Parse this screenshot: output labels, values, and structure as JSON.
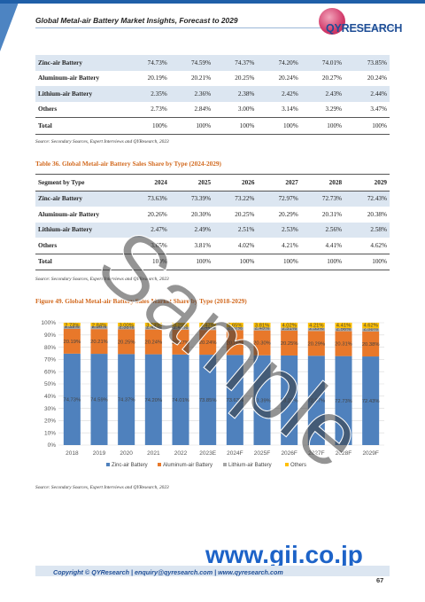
{
  "header": {
    "title": "Global Metal-air Battery Market Insights, Forecast to 2029",
    "logo_text": "QYRESEARCH"
  },
  "table1": {
    "rows": [
      {
        "label": "Zinc-air Battery",
        "values": [
          "74.73%",
          "74.59%",
          "74.37%",
          "74.20%",
          "74.01%",
          "73.85%"
        ]
      },
      {
        "label": "Aluminum-air Battery",
        "values": [
          "20.19%",
          "20.21%",
          "20.25%",
          "20.24%",
          "20.27%",
          "20.24%"
        ]
      },
      {
        "label": "Lithium-air Battery",
        "values": [
          "2.35%",
          "2.36%",
          "2.38%",
          "2.42%",
          "2.43%",
          "2.44%"
        ]
      },
      {
        "label": "Others",
        "values": [
          "2.73%",
          "2.84%",
          "3.00%",
          "3.14%",
          "3.29%",
          "3.47%"
        ]
      },
      {
        "label": "Total",
        "values": [
          "100%",
          "100%",
          "100%",
          "100%",
          "100%",
          "100%"
        ]
      }
    ]
  },
  "source1": "Source: Secondary Sources, Expert Interviews and QYResearch, 2023",
  "table2": {
    "caption": "Table 36.   Global Metal-air Battery Sales Share by Type (2024-2029)",
    "header": [
      "Segment by Type",
      "2024",
      "2025",
      "2026",
      "2027",
      "2028",
      "2029"
    ],
    "rows": [
      {
        "label": "Zinc-air Battery",
        "values": [
          "73.63%",
          "73.39%",
          "73.22%",
          "72.97%",
          "72.73%",
          "72.43%"
        ]
      },
      {
        "label": "Aluminum-air Battery",
        "values": [
          "20.26%",
          "20.30%",
          "20.25%",
          "20.29%",
          "20.31%",
          "20.38%"
        ]
      },
      {
        "label": "Lithium-air Battery",
        "values": [
          "2.47%",
          "2.49%",
          "2.51%",
          "2.53%",
          "2.56%",
          "2.58%"
        ]
      },
      {
        "label": "Others",
        "values": [
          "3.65%",
          "3.81%",
          "4.02%",
          "4.21%",
          "4.41%",
          "4.62%"
        ]
      },
      {
        "label": "Total",
        "values": [
          "100%",
          "100%",
          "100%",
          "100%",
          "100%",
          "100%"
        ]
      }
    ]
  },
  "source2": "Source: Secondary Sources, Expert Interviews and QYResearch, 2023",
  "figure_caption": "Figure 49.   Global Metal-air Battery Sales Market Share by Type (2018-2029)",
  "source3": "Source: Secondary Sources, Expert Interviews and QYResearch, 2023",
  "chart_data": {
    "type": "bar",
    "stacked": true,
    "title": "",
    "xlabel": "",
    "ylabel": "",
    "ylim": [
      0,
      100
    ],
    "yticks": [
      "0%",
      "10%",
      "20%",
      "30%",
      "40%",
      "50%",
      "60%",
      "70%",
      "80%",
      "90%",
      "100%"
    ],
    "categories": [
      "2018",
      "2019",
      "2020",
      "2021",
      "2022",
      "2023E",
      "2024F",
      "2025F",
      "2026F",
      "2027F",
      "2028F",
      "2029F"
    ],
    "series": [
      {
        "name": "Zinc-air Battery",
        "color": "#4f81bd",
        "values": [
          74.73,
          74.59,
          74.37,
          74.2,
          74.01,
          73.85,
          73.63,
          73.39,
          73.22,
          72.97,
          72.73,
          72.43
        ],
        "labels": [
          "74.73%",
          "74.59%",
          "74.37%",
          "74.20%",
          "74.01%",
          "73.85%",
          "73.63%",
          "73.39%",
          "73.22%",
          "72.97%",
          "72.73%",
          "72.43%"
        ]
      },
      {
        "name": "Aluminum-air Battery",
        "color": "#e8782a",
        "values": [
          20.19,
          20.21,
          20.25,
          20.24,
          20.27,
          20.24,
          20.26,
          20.3,
          20.25,
          20.29,
          20.31,
          20.38
        ],
        "labels": [
          "20.19%",
          "20.21%",
          "20.25%",
          "20.24%",
          "20.27%",
          "20.24%",
          "20.26%",
          "20.30%",
          "20.25%",
          "20.29%",
          "20.31%",
          "20.38%"
        ]
      },
      {
        "name": "Lithium-air Battery",
        "color": "#a5a5a5",
        "values": [
          2.35,
          2.36,
          2.38,
          2.42,
          2.43,
          2.44,
          2.47,
          2.49,
          2.51,
          2.53,
          2.56,
          2.58
        ],
        "labels": [
          "2.35%",
          "2.36%",
          "2.38%",
          "2.42%",
          "2.43%",
          "2.44%",
          "2.47%",
          "2.49%",
          "2.51%",
          "2.53%",
          "2.56%",
          "2.58%"
        ]
      },
      {
        "name": "Others",
        "color": "#ffc000",
        "values": [
          2.73,
          2.84,
          3.0,
          3.14,
          3.29,
          3.47,
          3.65,
          3.81,
          4.02,
          4.21,
          4.41,
          4.62
        ],
        "labels": [
          "2.73%",
          "2.84%",
          "3.00%",
          "3.14%",
          "3.29%",
          "3.47%",
          "3.65%",
          "3.81%",
          "4.02%",
          "4.21%",
          "4.41%",
          "4.62%"
        ]
      }
    ],
    "grid": true,
    "legend": "bottom"
  },
  "footer": {
    "text": "Copyright © QYResearch | enquiry@qyresearch.com | www.qyresearch.com",
    "page_number": "67"
  },
  "watermark": {
    "sample": "Sample",
    "site": "www.gii.co.jp"
  }
}
